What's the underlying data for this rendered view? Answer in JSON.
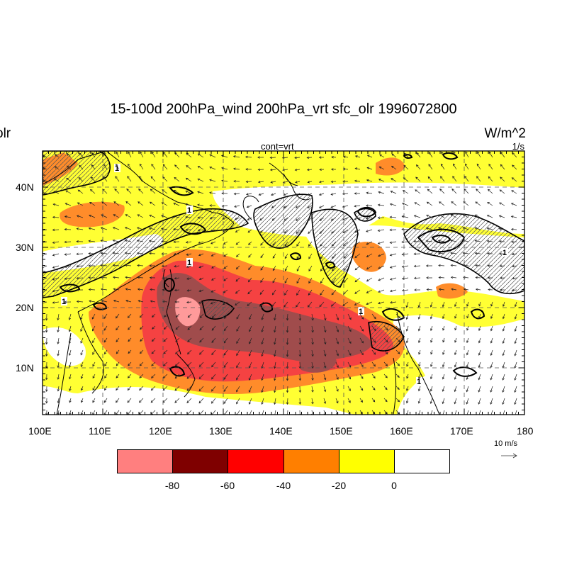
{
  "title": "15-100d 200hPa_wind 200hPa_vrt sfc_olr 1996072800",
  "left_label": "olr",
  "right_label": "W/m^2",
  "center_sub_label": "cont=vrt",
  "right_sub_label": "1/s",
  "lat_labels": [
    "40N",
    "30N",
    "20N",
    "10N"
  ],
  "lon_labels": [
    "100E",
    "110E",
    "120E",
    "130E",
    "140E",
    "150E",
    "160E",
    "170E",
    "180"
  ],
  "ref_vector_label": "10 m/s",
  "contour_label": "1",
  "colorbar": {
    "colors": [
      "#ff7f7f",
      "#7f0000",
      "#ff0000",
      "#ff7f00",
      "#ffff00",
      "#ffffff"
    ],
    "labels": [
      "-80",
      "-60",
      "-40",
      "-20",
      "0"
    ]
  },
  "colors": {
    "very_strong": "#ff9a9a",
    "deep_red": "#a04c4c",
    "red": "#f54242",
    "orange": "#ff8c2a",
    "yellow": "#ffff33",
    "background": "#ffffff"
  }
}
